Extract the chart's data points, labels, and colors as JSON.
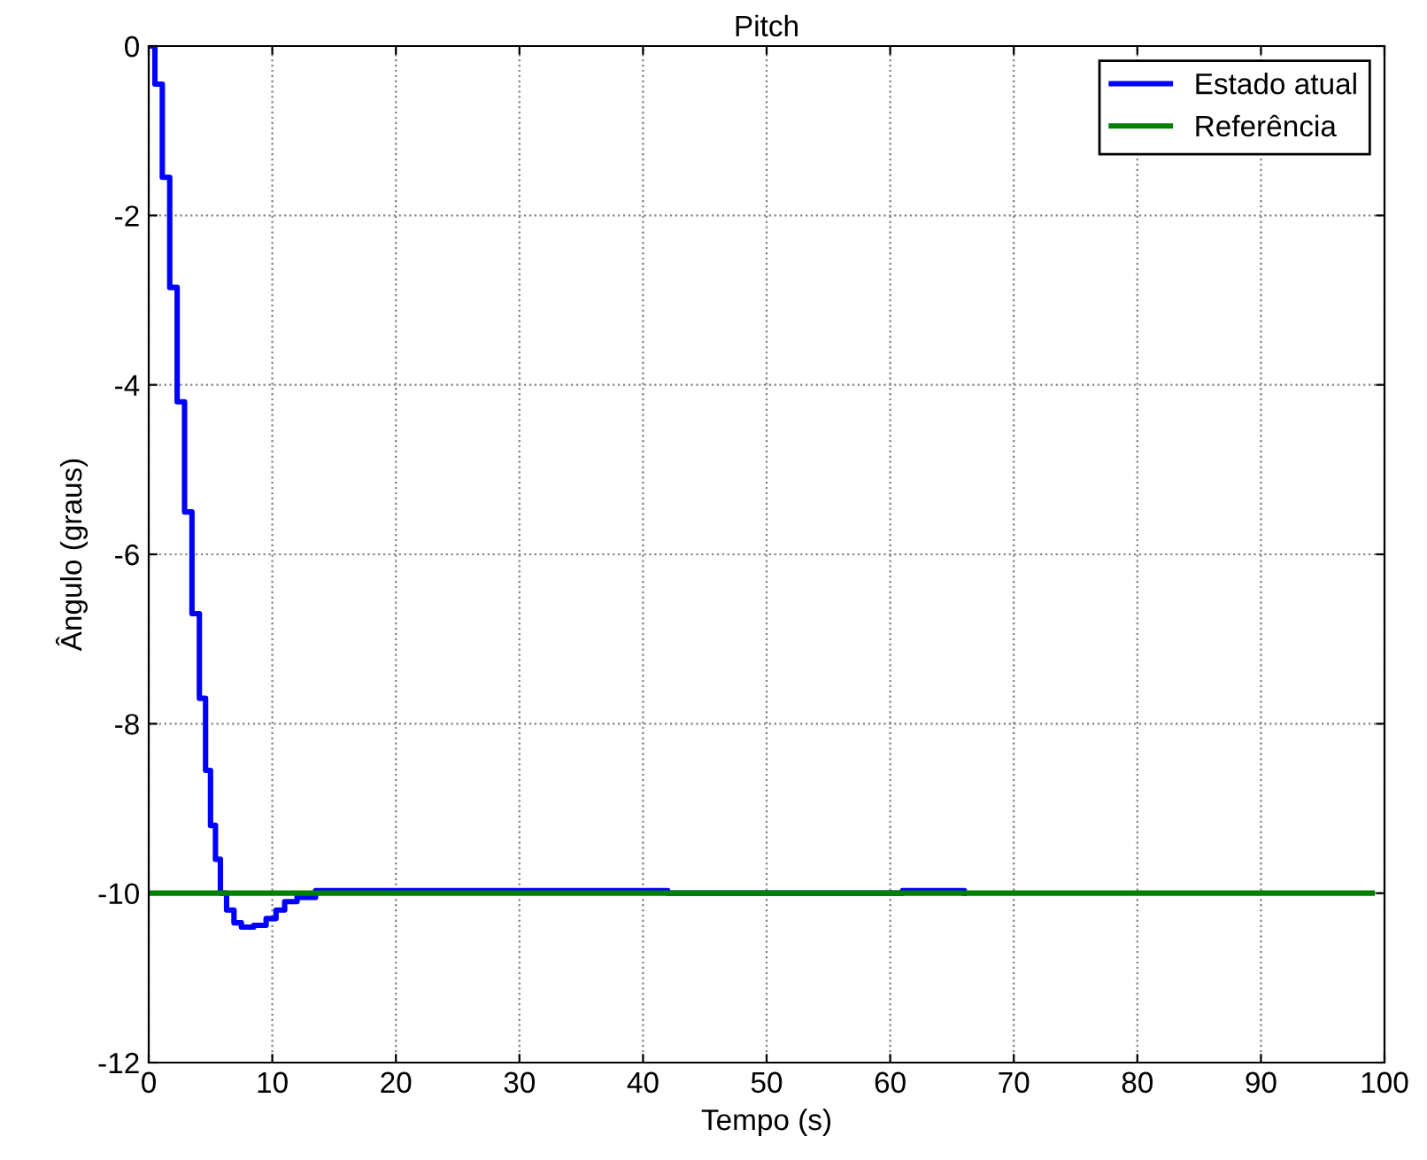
{
  "chart_data": {
    "type": "step",
    "title": "Pitch",
    "xlabel": "Tempo (s)",
    "ylabel": "Ângulo (graus)",
    "xlim": [
      0,
      100
    ],
    "xticks": [
      0,
      10,
      20,
      30,
      40,
      50,
      60,
      70,
      80,
      90,
      100
    ],
    "ylim": [
      -12,
      0
    ],
    "yticks": [
      -12,
      -10,
      -8,
      -6,
      -4,
      -2,
      0
    ],
    "grid": true,
    "legend": "top right",
    "series": [
      {
        "name": "Estado atual",
        "color": "#0000ff",
        "x": [
          0,
          0.5,
          1.1,
          1.7,
          2.3,
          2.9,
          3.5,
          4.1,
          4.6,
          5.0,
          5.4,
          5.8,
          6.3,
          6.9,
          7.5,
          8.5,
          9.5,
          10.3,
          11,
          12,
          13.5,
          42,
          61,
          66
        ],
        "values": [
          0,
          -0.45,
          -1.55,
          -2.85,
          -4.2,
          -5.5,
          -6.7,
          -7.7,
          -8.55,
          -9.2,
          -9.6,
          -10.0,
          -10.2,
          -10.35,
          -10.4,
          -10.38,
          -10.3,
          -10.2,
          -10.1,
          -10.05,
          -9.97,
          -10,
          -9.97,
          -10
        ]
      },
      {
        "name": "Referência",
        "color": "#008000",
        "x": [
          0,
          99
        ],
        "values": [
          -10,
          -10
        ]
      }
    ]
  }
}
